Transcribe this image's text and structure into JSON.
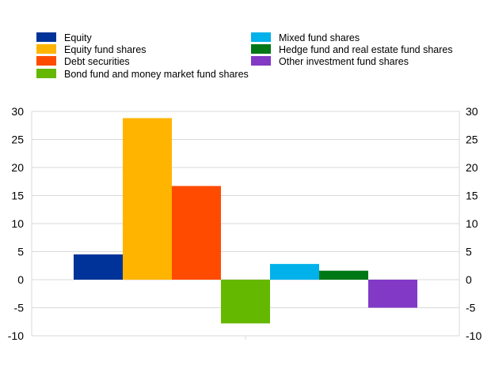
{
  "chart_data": {
    "type": "bar",
    "categories": [
      ""
    ],
    "series": [
      {
        "name": "Equity",
        "value": 4.5,
        "color": "#003399"
      },
      {
        "name": "Equity fund shares",
        "value": 28.8,
        "color": "#FFB400"
      },
      {
        "name": "Debt securities",
        "value": 16.7,
        "color": "#FF4B00"
      },
      {
        "name": "Bond fund and money market fund shares",
        "value": -7.8,
        "color": "#65B800"
      },
      {
        "name": "Mixed fund shares",
        "value": 2.8,
        "color": "#00B1EA"
      },
      {
        "name": "Hedge fund and real estate fund shares",
        "value": 1.6,
        "color": "#007816"
      },
      {
        "name": "Other investment fund shares",
        "value": -5.0,
        "color": "#8139C6"
      }
    ],
    "ylim": [
      -10,
      30
    ],
    "yticks": [
      -10,
      -5,
      0,
      5,
      10,
      15,
      20,
      25,
      30
    ],
    "ytick_labels": [
      "-10",
      "-5",
      "0",
      "5",
      "10",
      "15",
      "20",
      "25",
      "30"
    ],
    "dual_y_axis": true,
    "grid": "horizontal",
    "legend_position": "top",
    "legend_columns": [
      [
        "Equity",
        "Equity fund shares",
        "Debt securities",
        "Bond fund and money market fund shares"
      ],
      [
        "Mixed fund shares",
        "Hedge fund and real estate fund shares",
        "Other investment fund shares"
      ]
    ]
  }
}
